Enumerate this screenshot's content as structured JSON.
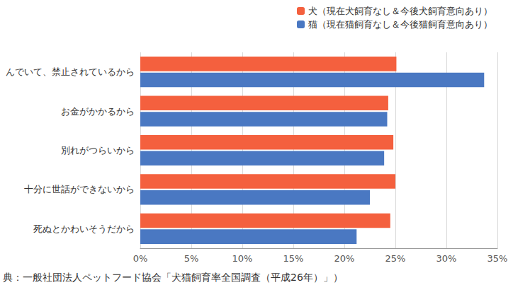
{
  "chart_data": {
    "type": "bar",
    "orientation": "horizontal",
    "categories": [
      "んでいて、禁止されているから",
      "お金がかかるから",
      "別れがつらいから",
      "十分に世話ができないから",
      "死ぬとかわいそうだから"
    ],
    "series": [
      {
        "name": "犬（現在犬飼育なし＆今後犬飼育意向あり）",
        "color": "#f4603e",
        "values": [
          25.1,
          24.3,
          24.8,
          25.0,
          24.5
        ]
      },
      {
        "name": "猫（現在猫飼育なし＆今後猫飼育意向あり）",
        "color": "#4a78c2",
        "values": [
          33.7,
          24.2,
          23.9,
          22.5,
          21.2
        ]
      }
    ],
    "xlim": [
      0,
      35
    ],
    "xticks": [
      {
        "value": 0,
        "label": "0%"
      },
      {
        "value": 5,
        "label": "5%"
      },
      {
        "value": 10,
        "label": "10%"
      },
      {
        "value": 15,
        "label": "15%"
      },
      {
        "value": 20,
        "label": "20%"
      },
      {
        "value": 25,
        "label": "25%"
      },
      {
        "value": 30,
        "label": "30%"
      },
      {
        "value": 35,
        "label": "35%"
      }
    ],
    "grid": true,
    "legend": "top-right",
    "source": "典：一般社団法人ペットフード協会「犬猫飼育率全国調査（平成26年）」）"
  }
}
